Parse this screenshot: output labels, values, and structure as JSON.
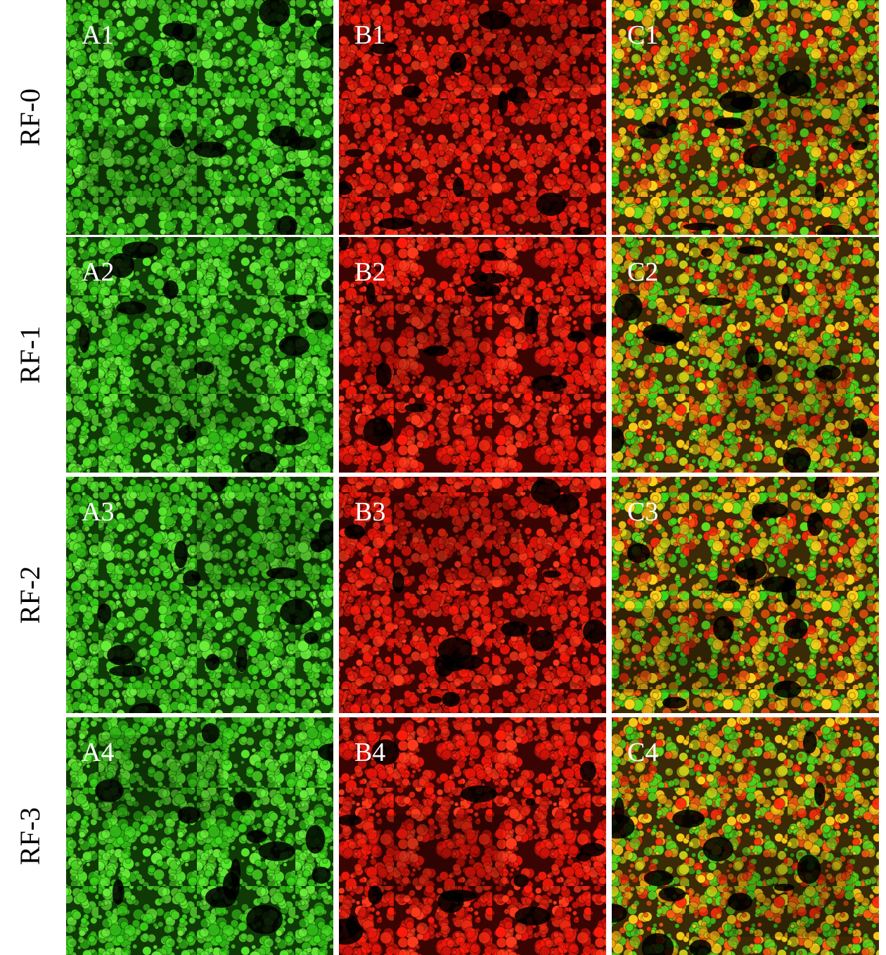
{
  "rows": [
    {
      "label": "RF-0",
      "panels": [
        "A1",
        "B1",
        "C1"
      ]
    },
    {
      "label": "RF-1",
      "panels": [
        "A2",
        "B2",
        "C2"
      ]
    },
    {
      "label": "RF-2",
      "panels": [
        "A3",
        "B3",
        "C3"
      ]
    },
    {
      "label": "RF-3",
      "panels": [
        "A4",
        "B4",
        "C4"
      ]
    }
  ]
}
